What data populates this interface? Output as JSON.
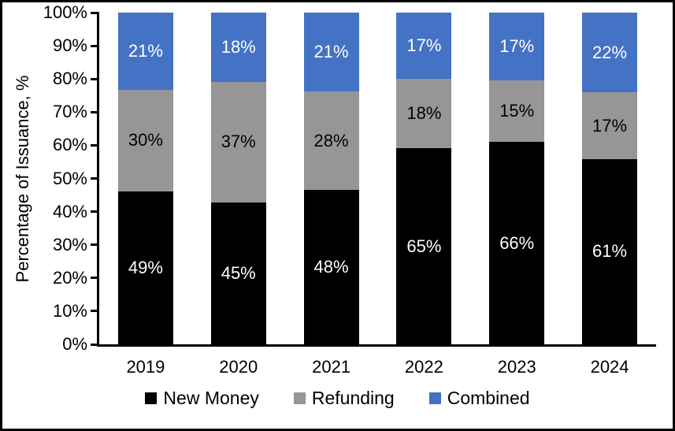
{
  "chart_data": {
    "type": "bar",
    "stacked": true,
    "ylabel": "Percentage of Issuance, %",
    "xlabel": "",
    "ylim": [
      0,
      100
    ],
    "grid": false,
    "legend_position": "bottom",
    "axis_color": "#000000",
    "background": "#ffffff",
    "y_tick_labels": [
      "0%",
      "10%",
      "20%",
      "30%",
      "40%",
      "50%",
      "60%",
      "70%",
      "80%",
      "90%",
      "100%"
    ],
    "categories": [
      "2019",
      "2020",
      "2021",
      "2022",
      "2023",
      "2024"
    ],
    "series": [
      {
        "name": "New Money",
        "color": "#000000",
        "label_color": "#ffffff",
        "values": [
          49,
          45,
          48,
          65,
          66,
          61
        ],
        "labels": [
          "49%",
          "45%",
          "48%",
          "65%",
          "66%",
          "61%"
        ]
      },
      {
        "name": "Refunding",
        "color": "#969696",
        "label_color": "#000000",
        "values": [
          30,
          37,
          28,
          18,
          15,
          17
        ],
        "labels": [
          "30%",
          "37%",
          "28%",
          "18%",
          "15%",
          "17%"
        ]
      },
      {
        "name": "Combined",
        "color": "#4472C4",
        "label_color": "#ffffff",
        "values": [
          21,
          18,
          21,
          17,
          17,
          22
        ],
        "labels": [
          "21%",
          "18%",
          "21%",
          "17%",
          "17%",
          "22%"
        ]
      }
    ]
  }
}
